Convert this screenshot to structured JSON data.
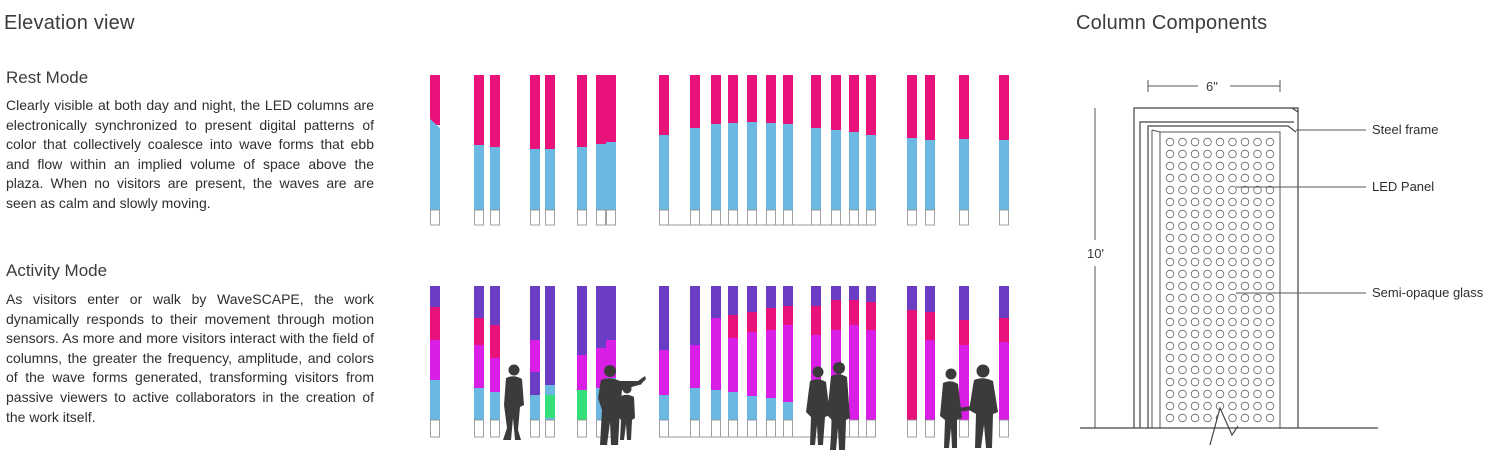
{
  "elevation": {
    "title": "Elevation view",
    "rest": {
      "heading": "Rest Mode",
      "body": "Clearly visible at both day and night, the LED columns are electronically synchronized to present digital patterns of color that collectively coalesce into wave forms that ebb and flow within an implied volume of space above the plaza. When no visitors are present, the waves are are seen as calm and slowly moving."
    },
    "activity": {
      "heading": "Activity Mode",
      "body": "As visitors enter or walk by WaveSCAPE, the work dynamically responds to their movement through motion sensors. As more and more visitors interact with the field of columns, the greater the frequency, amplitude, and colors of the wave forms generated, transforming visitors from passive viewers to active collaborators in the creation of the work itself."
    }
  },
  "components": {
    "title": "Column Components",
    "width_label": "6\"",
    "height_label": "10'",
    "labels": [
      "Steel frame",
      "LED Panel",
      "Semi-opaque glass"
    ]
  },
  "colors": {
    "magenta": "#e8127a",
    "blue": "#6bb8e2",
    "purple": "#6a3dc4",
    "violet": "#d91ee6",
    "green": "#35e07a",
    "outline": "#8a8a8a"
  }
}
